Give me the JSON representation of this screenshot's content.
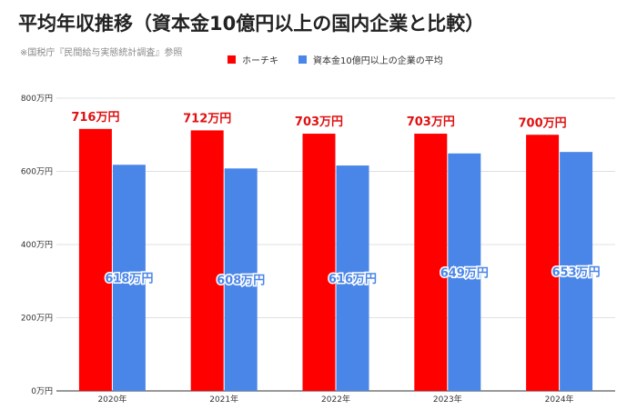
{
  "header": {
    "title": "平均年収推移（資本金10億円以上の国内企業と比較）",
    "source": "※国税庁『民間給与実態統計調査』参照"
  },
  "chart_data": {
    "type": "bar",
    "categories": [
      "2020年",
      "2021年",
      "2022年",
      "2023年",
      "2024年"
    ],
    "series": [
      {
        "name": "ホーチキ",
        "color": "#ff0000",
        "values": [
          716,
          712,
          703,
          703,
          700
        ],
        "labels": [
          "716万円",
          "712万円",
          "703万円",
          "703万円",
          "700万円"
        ]
      },
      {
        "name": "資本金10億円以上の企業の平均",
        "color": "#4a86e8",
        "values": [
          618,
          608,
          616,
          649,
          653
        ],
        "labels": [
          "618万円",
          "608万円",
          "616万円",
          "649万円",
          "653万円"
        ]
      }
    ],
    "ylim": [
      0,
      800
    ],
    "yticks": [
      {
        "value": 0,
        "label": "0万円"
      },
      {
        "value": 200,
        "label": "200万円"
      },
      {
        "value": 400,
        "label": "400万円"
      },
      {
        "value": 600,
        "label": "600万円"
      },
      {
        "value": 800,
        "label": "800万円"
      }
    ],
    "grid": true,
    "legend_position": "top",
    "label_colors": {
      "series1": "#e01010",
      "series2": "#4a86e8"
    }
  }
}
